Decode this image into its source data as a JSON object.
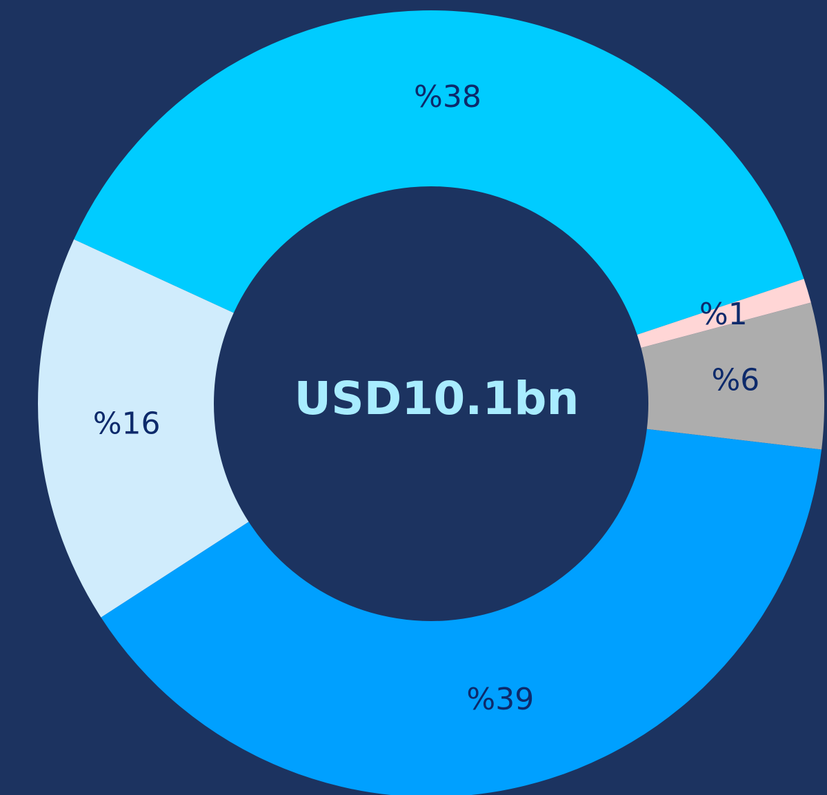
{
  "chart_data": {
    "type": "pie",
    "center_label": "USD10.1bn",
    "categories": [
      null,
      null,
      null,
      null,
      null
    ],
    "values": [
      38,
      1,
      6,
      39,
      16
    ],
    "value_labels": [
      "%38",
      "%1",
      "%6",
      "%39",
      "%16"
    ],
    "colors": [
      "#00ccff",
      "#ffd6d6",
      "#adadad",
      "#00a0ff",
      "#d0ecfc"
    ]
  }
}
